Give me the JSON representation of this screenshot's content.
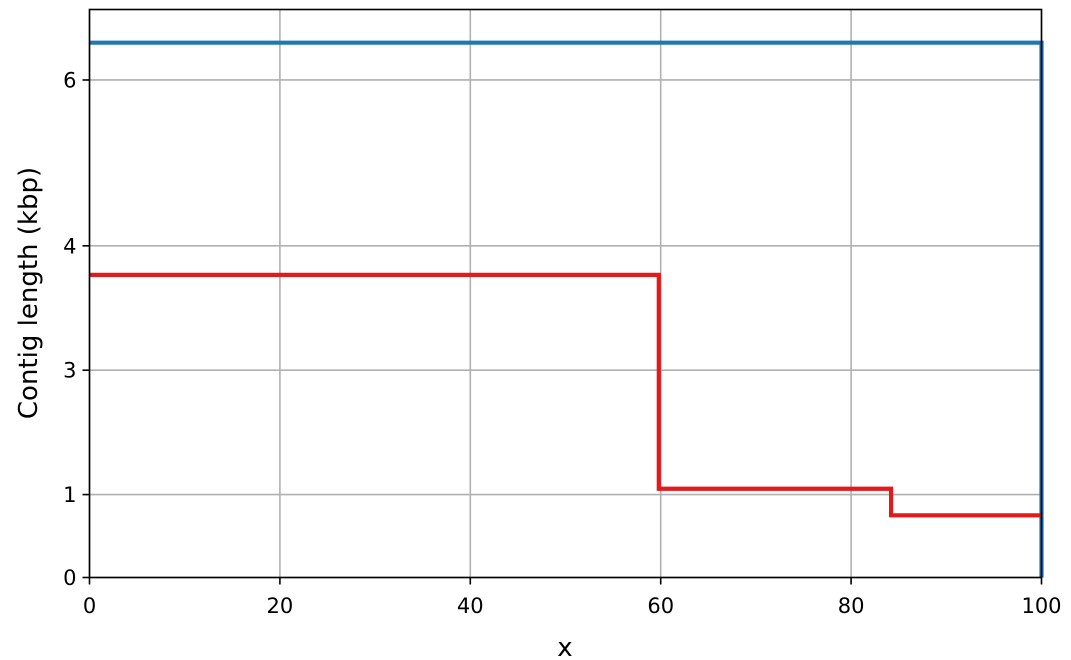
{
  "chart_data": {
    "type": "line",
    "step": true,
    "xlabel": "x",
    "ylabel": "Contig length (kbp)",
    "xlim": [
      0,
      100
    ],
    "ylim": [
      0,
      6.85
    ],
    "grid": true,
    "x_ticks": [
      {
        "value": 0,
        "label": "0"
      },
      {
        "value": 20,
        "label": "20"
      },
      {
        "value": 40,
        "label": "40"
      },
      {
        "value": 60,
        "label": "60"
      },
      {
        "value": 80,
        "label": "80"
      },
      {
        "value": 100,
        "label": "100"
      }
    ],
    "y_ticks": [
      {
        "value": 0,
        "label": "0"
      },
      {
        "value": 1,
        "label": "1"
      },
      {
        "value": 2.5,
        "label": "3"
      },
      {
        "value": 4,
        "label": "4"
      },
      {
        "value": 6,
        "label": "6"
      }
    ],
    "series": [
      {
        "color": "#1f77b4",
        "points": [
          [
            0,
            6.45
          ],
          [
            100,
            6.45
          ],
          [
            100,
            0
          ]
        ]
      },
      {
        "color": "#e31a1c",
        "points": [
          [
            0,
            3.65
          ],
          [
            59.8,
            3.65
          ],
          [
            59.8,
            1.07
          ],
          [
            84.2,
            1.07
          ],
          [
            84.2,
            0.75
          ],
          [
            100,
            0.75
          ]
        ]
      }
    ]
  }
}
